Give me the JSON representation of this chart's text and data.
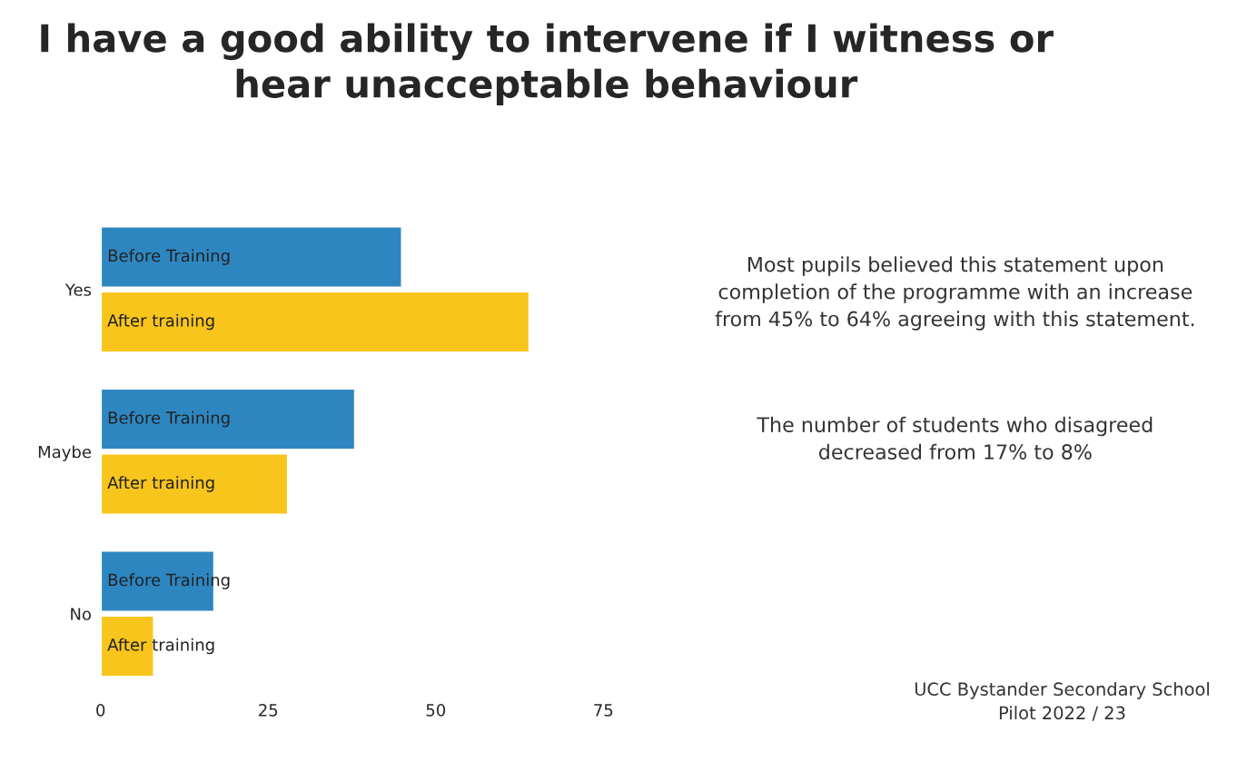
{
  "chart_data": {
    "type": "bar",
    "orientation": "horizontal",
    "title": "I have a good ability to intervene if I witness or\nhear unacceptable behaviour",
    "categories": [
      "Yes",
      "Maybe",
      "No"
    ],
    "series": [
      {
        "name": "Before Training",
        "color": "#2e86c1",
        "values": [
          45,
          38,
          17
        ]
      },
      {
        "name": "After training",
        "color": "#f8c51c",
        "values": [
          64,
          28,
          8
        ]
      }
    ],
    "xlim": [
      0,
      75
    ],
    "xticks": [
      0,
      25,
      50,
      75
    ],
    "grid": false,
    "legend": false,
    "annotations": [
      "Most pupils believed this statement upon\ncompletion of the programme with an increase\nfrom 45% to 64% agreeing with this statement.",
      "The number of students who disagreed\ndecreased from 17% to 8%",
      "UCC Bystander Secondary School\nPilot 2022 / 23"
    ]
  }
}
